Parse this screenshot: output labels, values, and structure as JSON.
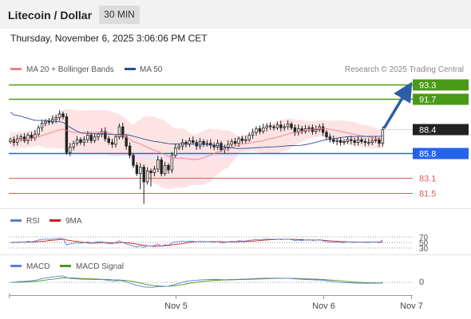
{
  "header": {
    "pair_title": "Litecoin / Dollar",
    "timeframe": "30 MIN",
    "timestamp": "Thursday, November 6, 2025 3:06:06 PM CET"
  },
  "legend": {
    "bollinger": "MA 20 + Bollinger Bands",
    "ma50": "MA 50",
    "credit": "Research © 2025 Trading Central",
    "rsi": "RSI",
    "rsi_ma": "9MA",
    "macd": "MACD",
    "macd_signal": "MACD Signal"
  },
  "colors": {
    "bollinger": "#f08080",
    "bollinger_fill": "#fde3e3",
    "ma50": "#2c4f8f",
    "resistance": "#4a9a17",
    "support_red": "#e05c5c",
    "pivot_blue": "#2563eb",
    "current_price": "#222222",
    "arrow": "#2c5ea8",
    "candle_up": "#ffffff",
    "candle_down": "#222222",
    "rsi": "#5b7fd6",
    "rsi_ma": "#cc1f1f",
    "macd": "#5b7fd6",
    "macd_signal": "#4a9a17"
  },
  "chart_data": [
    {
      "type": "candlestick",
      "title": "Litecoin / Dollar",
      "ylim": [
        80.1,
        94.0
      ],
      "levels": [
        {
          "value": 93.3,
          "label": "93.3",
          "kind": "resistance"
        },
        {
          "value": 91.7,
          "label": "91.7",
          "kind": "resistance"
        },
        {
          "value": 88.4,
          "label": "88.4",
          "kind": "current"
        },
        {
          "value": 85.8,
          "label": "85.8",
          "kind": "pivot"
        },
        {
          "value": 83.1,
          "label": "83.1",
          "kind": "support"
        },
        {
          "value": 81.5,
          "label": "81.5",
          "kind": "support"
        }
      ],
      "x_ticks": [
        "Nov 5",
        "Nov 6",
        "Nov 7"
      ],
      "x_tick_index": [
        47,
        89,
        114
      ],
      "close": [
        87.3,
        87.0,
        87.4,
        87.6,
        87.2,
        87.8,
        87.5,
        87.9,
        88.6,
        89.1,
        89.3,
        89.2,
        89.5,
        89.7,
        90.1,
        89.8,
        85.9,
        86.5,
        86.9,
        87.3,
        87.0,
        87.3,
        87.8,
        87.2,
        87.6,
        87.9,
        88.2,
        87.4,
        87.0,
        86.8,
        87.6,
        88.7,
        87.6,
        86.6,
        85.6,
        84.5,
        83.6,
        84.3,
        82.7,
        83.9,
        83.7,
        84.1,
        85.1,
        83.6,
        84.5,
        84.0,
        85.6,
        86.4,
        86.6,
        87.0,
        86.8,
        87.2,
        87.0,
        86.6,
        87.1,
        86.8,
        86.9,
        86.7,
        86.5,
        86.9,
        86.2,
        86.4,
        86.8,
        87.1,
        86.9,
        87.4,
        87.2,
        87.3,
        87.8,
        88.1,
        88.5,
        88.2,
        88.6,
        88.8,
        88.7,
        88.6,
        88.9,
        88.6,
        88.7,
        89.0,
        88.6,
        88.1,
        88.5,
        88.2,
        88.5,
        88.6,
        88.2,
        88.4,
        88.7,
        88.1,
        87.6,
        87.3,
        87.1,
        87.2,
        87.0,
        87.1,
        87.3,
        87.2,
        87.0,
        87.3,
        87.1,
        87.0,
        87.0,
        87.2,
        87.3,
        86.9,
        88.4
      ]
    },
    {
      "type": "line",
      "title": "RSI",
      "series": [
        {
          "name": "RSI"
        },
        {
          "name": "9MA"
        }
      ],
      "y_ticks": [
        70,
        50,
        30
      ],
      "ylim": [
        10,
        90
      ],
      "rsi": [
        50,
        49,
        51,
        52,
        50,
        54,
        52,
        55,
        59,
        61,
        62,
        61,
        62,
        63,
        65,
        63,
        41,
        45,
        47,
        49,
        47,
        49,
        52,
        48,
        50,
        52,
        53,
        48,
        46,
        45,
        50,
        56,
        50,
        45,
        41,
        37,
        34,
        38,
        32,
        38,
        37,
        39,
        44,
        37,
        42,
        40,
        48,
        52,
        53,
        54,
        53,
        55,
        54,
        52,
        54,
        52,
        53,
        52,
        51,
        53,
        49,
        50,
        52,
        54,
        53,
        56,
        55,
        55,
        58,
        59,
        61,
        59,
        61,
        62,
        61,
        61,
        62,
        60,
        61,
        62,
        60,
        57,
        59,
        57,
        59,
        60,
        57,
        58,
        60,
        56,
        53,
        51,
        50,
        51,
        50,
        50,
        52,
        51,
        50,
        52,
        51,
        50,
        50,
        51,
        52,
        49,
        59
      ],
      "rsi_ma": [
        50,
        50,
        50,
        51,
        51,
        51,
        51,
        52,
        53,
        54,
        55,
        57,
        58,
        59,
        60,
        62,
        59,
        57,
        55,
        54,
        52,
        50,
        48,
        47,
        48,
        48,
        49,
        50,
        49,
        48,
        48,
        49,
        50,
        49,
        48,
        46,
        44,
        42,
        40,
        38,
        37,
        36,
        37,
        37,
        39,
        39,
        41,
        43,
        44,
        46,
        48,
        50,
        51,
        53,
        53,
        53,
        53,
        53,
        53,
        53,
        53,
        52,
        52,
        52,
        52,
        53,
        53,
        53,
        54,
        55,
        56,
        57,
        58,
        59,
        60,
        60,
        61,
        61,
        61,
        61,
        61,
        61,
        60,
        60,
        59,
        59,
        59,
        59,
        59,
        58,
        57,
        56,
        55,
        54,
        53,
        53,
        52,
        52,
        51,
        51,
        51,
        51,
        51,
        51,
        51,
        51,
        52
      ]
    },
    {
      "type": "line",
      "title": "MACD",
      "series": [
        {
          "name": "MACD"
        },
        {
          "name": "MACD Signal"
        }
      ],
      "y_ticks": [
        0
      ],
      "ylim": [
        -1.2,
        1.2
      ],
      "macd": [
        0.0,
        0.02,
        0.05,
        0.08,
        0.1,
        0.14,
        0.16,
        0.2,
        0.28,
        0.38,
        0.45,
        0.5,
        0.55,
        0.6,
        0.65,
        0.66,
        0.5,
        0.42,
        0.38,
        0.36,
        0.33,
        0.32,
        0.32,
        0.3,
        0.29,
        0.29,
        0.3,
        0.25,
        0.2,
        0.15,
        0.15,
        0.2,
        0.15,
        0.05,
        -0.08,
        -0.2,
        -0.32,
        -0.38,
        -0.48,
        -0.5,
        -0.52,
        -0.5,
        -0.44,
        -0.45,
        -0.42,
        -0.4,
        -0.32,
        -0.2,
        -0.1,
        0.0,
        0.08,
        0.15,
        0.2,
        0.22,
        0.25,
        0.27,
        0.28,
        0.29,
        0.29,
        0.3,
        0.28,
        0.27,
        0.28,
        0.29,
        0.3,
        0.32,
        0.33,
        0.34,
        0.36,
        0.38,
        0.4,
        0.41,
        0.42,
        0.43,
        0.43,
        0.43,
        0.44,
        0.43,
        0.42,
        0.42,
        0.4,
        0.36,
        0.34,
        0.31,
        0.3,
        0.29,
        0.27,
        0.25,
        0.25,
        0.22,
        0.17,
        0.12,
        0.07,
        0.03,
        -0.01,
        -0.04,
        -0.05,
        -0.06,
        -0.08,
        -0.08,
        -0.09,
        -0.1,
        -0.1,
        -0.1,
        -0.09,
        -0.1,
        0.0
      ],
      "signal": [
        0.0,
        0.0,
        0.01,
        0.02,
        0.04,
        0.06,
        0.08,
        0.1,
        0.14,
        0.18,
        0.23,
        0.28,
        0.32,
        0.37,
        0.42,
        0.46,
        0.47,
        0.46,
        0.45,
        0.43,
        0.41,
        0.39,
        0.38,
        0.36,
        0.35,
        0.33,
        0.32,
        0.31,
        0.29,
        0.27,
        0.25,
        0.24,
        0.22,
        0.19,
        0.14,
        0.08,
        0.0,
        -0.08,
        -0.16,
        -0.23,
        -0.3,
        -0.35,
        -0.38,
        -0.4,
        -0.41,
        -0.41,
        -0.39,
        -0.35,
        -0.3,
        -0.24,
        -0.17,
        -0.1,
        -0.04,
        0.01,
        0.06,
        0.1,
        0.14,
        0.17,
        0.19,
        0.21,
        0.23,
        0.24,
        0.25,
        0.26,
        0.27,
        0.28,
        0.29,
        0.3,
        0.31,
        0.32,
        0.34,
        0.35,
        0.36,
        0.38,
        0.39,
        0.4,
        0.41,
        0.41,
        0.42,
        0.42,
        0.42,
        0.41,
        0.4,
        0.39,
        0.37,
        0.36,
        0.34,
        0.33,
        0.31,
        0.29,
        0.27,
        0.25,
        0.22,
        0.19,
        0.16,
        0.12,
        0.09,
        0.06,
        0.03,
        0.01,
        -0.01,
        -0.03,
        -0.05,
        -0.06,
        -0.07,
        -0.08,
        -0.06
      ]
    }
  ]
}
